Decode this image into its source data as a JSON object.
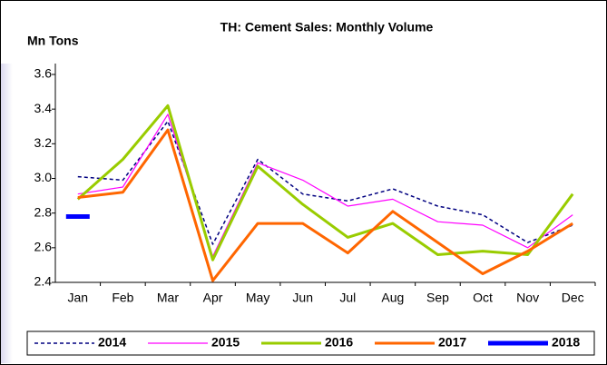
{
  "chart_data": {
    "type": "line",
    "title": "TH: Cement Sales: Monthly Volume",
    "y_label": "Mn Tons",
    "categories": [
      "Jan",
      "Feb",
      "Mar",
      "Apr",
      "May",
      "Jun",
      "Jul",
      "Aug",
      "Sep",
      "Oct",
      "Nov",
      "Dec"
    ],
    "ylim": [
      2.4,
      3.6
    ],
    "yticks": [
      2.4,
      2.6,
      2.8,
      {
        "value": 3,
        "label": "3.0"
      },
      3.2,
      3.4,
      3.6
    ],
    "legend": "bottom",
    "series": [
      {
        "name": "2014",
        "color": "#000080",
        "values": [
          3.01,
          2.99,
          3.33,
          2.62,
          3.11,
          2.91,
          2.87,
          2.94,
          2.84,
          2.79,
          2.63,
          2.73
        ]
      },
      {
        "name": "2015",
        "color": "#ff00ff",
        "values": [
          2.91,
          2.95,
          3.37,
          2.55,
          3.09,
          2.99,
          2.84,
          2.88,
          2.75,
          2.73,
          2.6,
          2.79
        ]
      },
      {
        "name": "2016",
        "color": "#99cc00",
        "values": [
          2.88,
          3.11,
          3.42,
          2.53,
          3.07,
          2.85,
          2.66,
          2.74,
          2.56,
          2.58,
          2.56,
          2.91
        ]
      },
      {
        "name": "2017",
        "color": "#ff6600",
        "values": [
          2.89,
          2.92,
          3.28,
          2.41,
          2.74,
          2.74,
          2.57,
          2.81,
          2.63,
          2.45,
          2.58,
          2.74
        ]
      },
      {
        "name": "2018",
        "color": "#0000ff",
        "values": [
          2.78,
          null,
          null,
          null,
          null,
          null,
          null,
          null,
          null,
          null,
          null,
          null
        ]
      }
    ]
  }
}
